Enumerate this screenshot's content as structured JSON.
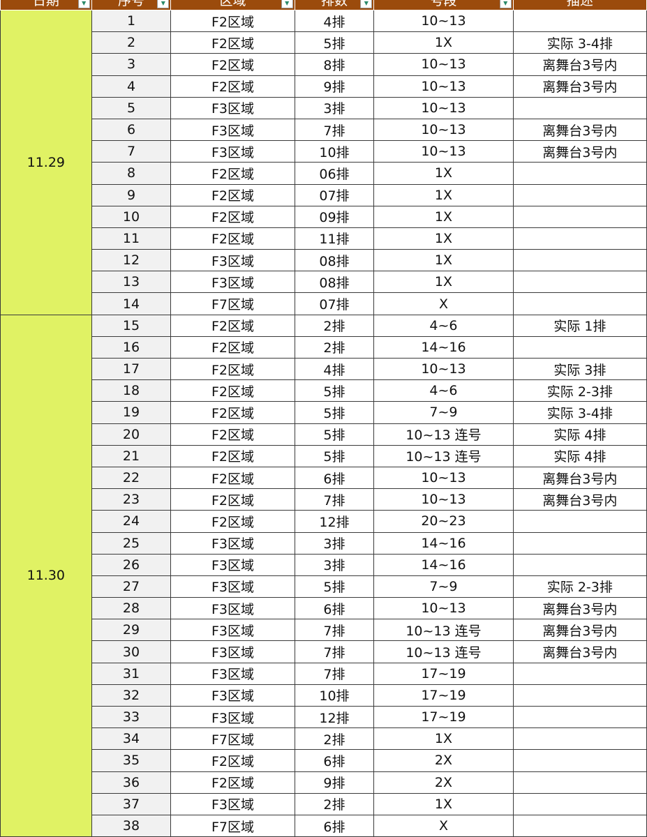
{
  "header": {
    "columns": [
      "日期",
      "序号",
      "区域",
      "排数",
      "号段",
      "描述"
    ]
  },
  "groups": [
    {
      "date": "11.29",
      "rows": [
        [
          "1",
          "F2区域",
          "4排",
          "10~13",
          ""
        ],
        [
          "2",
          "F2区域",
          "5排",
          "1X",
          "实际 3-4排"
        ],
        [
          "3",
          "F2区域",
          "8排",
          "10~13",
          "离舞台3号内"
        ],
        [
          "4",
          "F2区域",
          "9排",
          "10~13",
          "离舞台3号内"
        ],
        [
          "5",
          "F3区域",
          "3排",
          "10~13",
          ""
        ],
        [
          "6",
          "F3区域",
          "7排",
          "10~13",
          "离舞台3号内"
        ],
        [
          "7",
          "F3区域",
          "10排",
          "10~13",
          "离舞台3号内"
        ],
        [
          "8",
          "F2区域",
          "06排",
          "1X",
          ""
        ],
        [
          "9",
          "F2区域",
          "07排",
          "1X",
          ""
        ],
        [
          "10",
          "F2区域",
          "09排",
          "1X",
          ""
        ],
        [
          "11",
          "F2区域",
          "11排",
          "1X",
          ""
        ],
        [
          "12",
          "F3区域",
          "08排",
          "1X",
          ""
        ],
        [
          "13",
          "F3区域",
          "08排",
          "1X",
          ""
        ],
        [
          "14",
          "F7区域",
          "07排",
          "X",
          ""
        ]
      ]
    },
    {
      "date": "11.30",
      "rows": [
        [
          "15",
          "F2区域",
          "2排",
          "4~6",
          "实际 1排"
        ],
        [
          "16",
          "F2区域",
          "2排",
          "14~16",
          ""
        ],
        [
          "17",
          "F2区域",
          "4排",
          "10~13",
          "实际 3排"
        ],
        [
          "18",
          "F2区域",
          "5排",
          "4~6",
          "实际 2-3排"
        ],
        [
          "19",
          "F2区域",
          "5排",
          "7~9",
          "实际 3-4排"
        ],
        [
          "20",
          "F2区域",
          "5排",
          "10~13 连号",
          "实际 4排"
        ],
        [
          "21",
          "F2区域",
          "5排",
          "10~13 连号",
          "实际 4排"
        ],
        [
          "22",
          "F2区域",
          "6排",
          "10~13",
          "离舞台3号内"
        ],
        [
          "23",
          "F2区域",
          "7排",
          "10~13",
          "离舞台3号内"
        ],
        [
          "24",
          "F2区域",
          "12排",
          "20~23",
          ""
        ],
        [
          "25",
          "F3区域",
          "3排",
          "14~16",
          ""
        ],
        [
          "26",
          "F3区域",
          "3排",
          "14~16",
          ""
        ],
        [
          "27",
          "F3区域",
          "5排",
          "7~9",
          "实际 2-3排"
        ],
        [
          "28",
          "F3区域",
          "6排",
          "10~13",
          "离舞台3号内"
        ],
        [
          "29",
          "F3区域",
          "7排",
          "10~13 连号",
          "离舞台3号内"
        ],
        [
          "30",
          "F3区域",
          "7排",
          "10~13 连号",
          "离舞台3号内"
        ],
        [
          "31",
          "F3区域",
          "7排",
          "17~19",
          ""
        ],
        [
          "32",
          "F3区域",
          "10排",
          "17~19",
          ""
        ],
        [
          "33",
          "F3区域",
          "12排",
          "17~19",
          ""
        ],
        [
          "34",
          "F7区域",
          "2排",
          "1X",
          ""
        ],
        [
          "35",
          "F2区域",
          "6排",
          "2X",
          ""
        ],
        [
          "36",
          "F2区域",
          "9排",
          "2X",
          ""
        ],
        [
          "37",
          "F3区域",
          "2排",
          "1X",
          ""
        ],
        [
          "38",
          "F7区域",
          "6排",
          "X",
          ""
        ]
      ]
    }
  ],
  "colors": {
    "header": "#9b4b0c",
    "date_cell": "#e0f264",
    "seq_cell": "#f1f1f1"
  },
  "icons": {
    "filter": "filter-dropdown-icon"
  }
}
